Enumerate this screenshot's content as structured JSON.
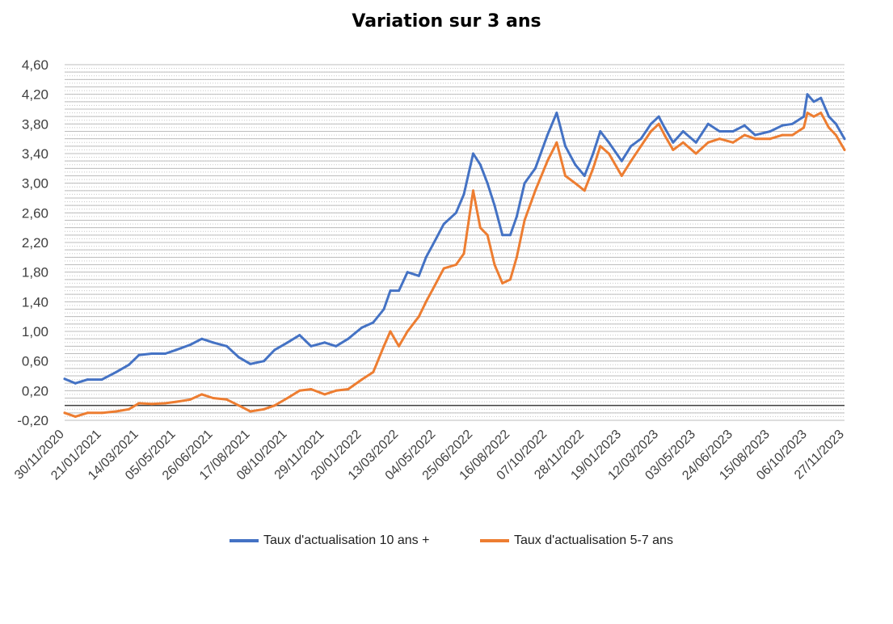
{
  "chart_data": {
    "type": "line",
    "title": "Variation sur 3 ans",
    "xlabel": "",
    "ylabel": "",
    "ylim": [
      -0.2,
      4.6
    ],
    "y_ticks": [
      "-0,20",
      "0,20",
      "0,60",
      "1,00",
      "1,40",
      "1,80",
      "2,20",
      "2,60",
      "3,00",
      "3,40",
      "3,80",
      "4,20",
      "4,60"
    ],
    "x_ticks": [
      "30/11/2020",
      "21/01/2021",
      "14/03/2021",
      "05/05/2021",
      "26/06/2021",
      "17/08/2021",
      "08/10/2021",
      "29/11/2021",
      "20/01/2022",
      "13/03/2022",
      "04/05/2022",
      "25/06/2022",
      "16/08/2022",
      "07/10/2022",
      "28/11/2022",
      "19/01/2023",
      "12/03/2023",
      "03/05/2023",
      "24/06/2023",
      "15/08/2023",
      "06/10/2023",
      "27/11/2023"
    ],
    "grid": true,
    "legend_position": "bottom",
    "x": [
      "2020-11-30",
      "2020-12-15",
      "2021-01-01",
      "2021-01-21",
      "2021-02-10",
      "2021-02-28",
      "2021-03-14",
      "2021-04-01",
      "2021-04-20",
      "2021-05-05",
      "2021-05-25",
      "2021-06-10",
      "2021-06-26",
      "2021-07-15",
      "2021-08-01",
      "2021-08-17",
      "2021-09-05",
      "2021-09-20",
      "2021-10-08",
      "2021-10-25",
      "2021-11-10",
      "2021-11-29",
      "2021-12-15",
      "2022-01-01",
      "2022-01-20",
      "2022-02-05",
      "2022-02-20",
      "2022-03-01",
      "2022-03-13",
      "2022-03-25",
      "2022-04-10",
      "2022-04-20",
      "2022-05-04",
      "2022-05-15",
      "2022-06-01",
      "2022-06-12",
      "2022-06-25",
      "2022-07-05",
      "2022-07-15",
      "2022-07-25",
      "2022-08-05",
      "2022-08-16",
      "2022-08-25",
      "2022-09-05",
      "2022-09-20",
      "2022-10-07",
      "2022-10-20",
      "2022-11-01",
      "2022-11-15",
      "2022-11-28",
      "2022-12-10",
      "2022-12-20",
      "2023-01-01",
      "2023-01-19",
      "2023-02-01",
      "2023-02-15",
      "2023-03-01",
      "2023-03-12",
      "2023-03-20",
      "2023-04-01",
      "2023-04-15",
      "2023-05-03",
      "2023-05-20",
      "2023-06-05",
      "2023-06-24",
      "2023-07-10",
      "2023-07-25",
      "2023-08-15",
      "2023-09-01",
      "2023-09-15",
      "2023-10-01",
      "2023-10-06",
      "2023-10-15",
      "2023-10-25",
      "2023-11-05",
      "2023-11-15",
      "2023-11-27"
    ],
    "series": [
      {
        "name": "Taux d'actualisation 10 ans +",
        "color": "#4472c4",
        "values": [
          0.36,
          0.3,
          0.35,
          0.35,
          0.45,
          0.55,
          0.68,
          0.7,
          0.7,
          0.75,
          0.82,
          0.9,
          0.85,
          0.8,
          0.65,
          0.56,
          0.6,
          0.75,
          0.85,
          0.95,
          0.8,
          0.85,
          0.8,
          0.9,
          1.05,
          1.12,
          1.3,
          1.55,
          1.55,
          1.8,
          1.75,
          2.0,
          2.25,
          2.45,
          2.6,
          2.85,
          3.4,
          3.25,
          3.0,
          2.7,
          2.3,
          2.3,
          2.55,
          3.0,
          3.2,
          3.65,
          3.95,
          3.5,
          3.25,
          3.1,
          3.4,
          3.7,
          3.55,
          3.3,
          3.5,
          3.6,
          3.8,
          3.9,
          3.75,
          3.55,
          3.7,
          3.55,
          3.8,
          3.7,
          3.7,
          3.78,
          3.65,
          3.7,
          3.78,
          3.8,
          3.9,
          4.2,
          4.1,
          4.15,
          3.9,
          3.8,
          3.6
        ]
      },
      {
        "name": "Taux d'actualisation 5-7 ans",
        "color": "#ed7d31",
        "values": [
          -0.1,
          -0.15,
          -0.1,
          -0.1,
          -0.08,
          -0.05,
          0.03,
          0.02,
          0.03,
          0.05,
          0.08,
          0.15,
          0.1,
          0.08,
          0.0,
          -0.08,
          -0.05,
          0.0,
          0.1,
          0.2,
          0.22,
          0.15,
          0.2,
          0.22,
          0.35,
          0.45,
          0.8,
          1.0,
          0.8,
          1.0,
          1.2,
          1.4,
          1.65,
          1.85,
          1.9,
          2.05,
          2.9,
          2.4,
          2.3,
          1.9,
          1.65,
          1.7,
          2.0,
          2.5,
          2.9,
          3.3,
          3.55,
          3.1,
          3.0,
          2.9,
          3.2,
          3.5,
          3.4,
          3.1,
          3.3,
          3.5,
          3.7,
          3.8,
          3.65,
          3.45,
          3.55,
          3.4,
          3.55,
          3.6,
          3.55,
          3.65,
          3.6,
          3.6,
          3.65,
          3.65,
          3.75,
          3.95,
          3.9,
          3.95,
          3.75,
          3.65,
          3.45
        ]
      }
    ]
  }
}
